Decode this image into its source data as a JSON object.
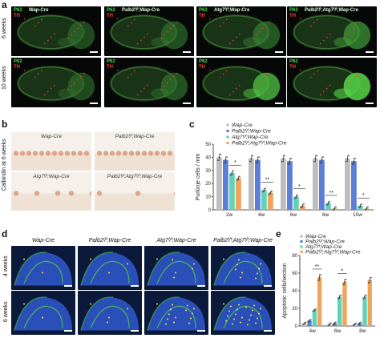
{
  "panel_a": {
    "letter": "a",
    "columns": [
      "Wap-Cre",
      "Palb2f/f;Wap-Cre",
      "Atg7f/f;Wap-Cre",
      "Palb2f/f;Atg7f/f;Wap-Cre"
    ],
    "column_titles_top": [
      "Wap-Cre",
      "Palb2ᶠ/ᶠ;Wap-Cre",
      "Atg7ᶠ/ᶠ;Wap-Cre",
      "Palb2ᶠ/ᶠ;Atg7ᶠ/ᶠ;Wap-Cre"
    ],
    "rows": [
      "6 weeks",
      "10 weeks"
    ],
    "stain_green": "P62",
    "stain_red": "TH"
  },
  "panel_b": {
    "letter": "b",
    "row_label": "Calbindin at 6 weeks",
    "captions": [
      "Wap-Cre",
      "Palb2ᶠ/ᶠ;Wap-Cre",
      "Atg7ᶠ/ᶠ;Wap-Cre",
      "Palb2ᶠ/ᶠ;Atg7ᶠ/ᶠ;Wap-Cre"
    ]
  },
  "panel_c": {
    "letter": "c",
    "legend": [
      "Wap-Cre",
      "Palb2ᶠ/ᶠ;Wap-Cre",
      "Atg7ᶠ/ᶠ;Wap-Cre",
      "Palb2ᶠ/ᶠ;Atg7ᶠ/ᶠ;Wap-Cre"
    ]
  },
  "panel_d": {
    "letter": "d",
    "columns": [
      "Wap-Cre",
      "Palb2ᶠ/ᶠ;Wap-Cre",
      "Atg7ᶠ/ᶠ;Wap-Cre",
      "Palb2ᶠ/ᶠ;Atg7ᶠ/ᶠ;Wap-Cre"
    ],
    "rows": [
      "4 weeks",
      "6 weeks"
    ]
  },
  "panel_e": {
    "letter": "e",
    "legend": [
      "Wap-Cre",
      "Palb2ᶠ/ᶠ;Wap-Cre",
      "Atg7ᶠ/ᶠ;Wap-Cre",
      "Palb2ᶠ/ᶠ;Atg7ᶠ/ᶠ;Wap-Cre"
    ]
  },
  "colors": {
    "wap": "#bdbdbd",
    "palb2": "#5b7fd6",
    "atg7": "#5fd3b8",
    "double": "#f0a35a"
  },
  "chart_data": [
    {
      "type": "bar",
      "ylabel": "Purkinje cells / mm",
      "categories": [
        "2w",
        "4w",
        "6w",
        "8w",
        "10w"
      ],
      "ylim": [
        0,
        50
      ],
      "yticks": [
        "0",
        "10",
        "20",
        "30",
        "40",
        "50"
      ],
      "series": [
        {
          "name": "Wap-Cre",
          "values": [
            40,
            39,
            39,
            39,
            39
          ]
        },
        {
          "name": "Palb2ᶠ/ᶠ;Wap-Cre",
          "values": [
            38,
            38,
            37,
            38,
            37
          ]
        },
        {
          "name": "Atg7ᶠ/ᶠ;Wap-Cre",
          "values": [
            28,
            15,
            10,
            5,
            3
          ]
        },
        {
          "name": "Palb2ᶠ/ᶠ;Atg7ᶠ/ᶠ;Wap-Cre",
          "values": [
            24,
            13,
            3,
            1,
            1
          ]
        }
      ],
      "significance": [
        {
          "category": "2w",
          "label": "*"
        },
        {
          "category": "4w",
          "label": "**"
        },
        {
          "category": "6w",
          "label": "*"
        },
        {
          "category": "8w",
          "label": "**"
        },
        {
          "category": "10w",
          "label": "*"
        }
      ]
    },
    {
      "type": "bar",
      "ylabel": "Apoptotic cells/section",
      "categories": [
        "4w",
        "6w",
        "8w"
      ],
      "ylim": [
        0,
        80
      ],
      "yticks": [
        "0",
        "20",
        "40",
        "60",
        "80"
      ],
      "series": [
        {
          "name": "Wap-Cre",
          "values": [
            3,
            2,
            2
          ]
        },
        {
          "name": "Palb2ᶠ/ᶠ;Wap-Cre",
          "values": [
            6,
            3,
            3
          ]
        },
        {
          "name": "Atg7ᶠ/ᶠ;Wap-Cre",
          "values": [
            18,
            33,
            33
          ]
        },
        {
          "name": "Palb2ᶠ/ᶠ;Atg7ᶠ/ᶠ;Wap-Cre",
          "values": [
            55,
            50,
            52
          ]
        }
      ],
      "significance": [
        {
          "category": "4w",
          "label": "**"
        },
        {
          "category": "6w",
          "label": "*"
        }
      ]
    }
  ]
}
